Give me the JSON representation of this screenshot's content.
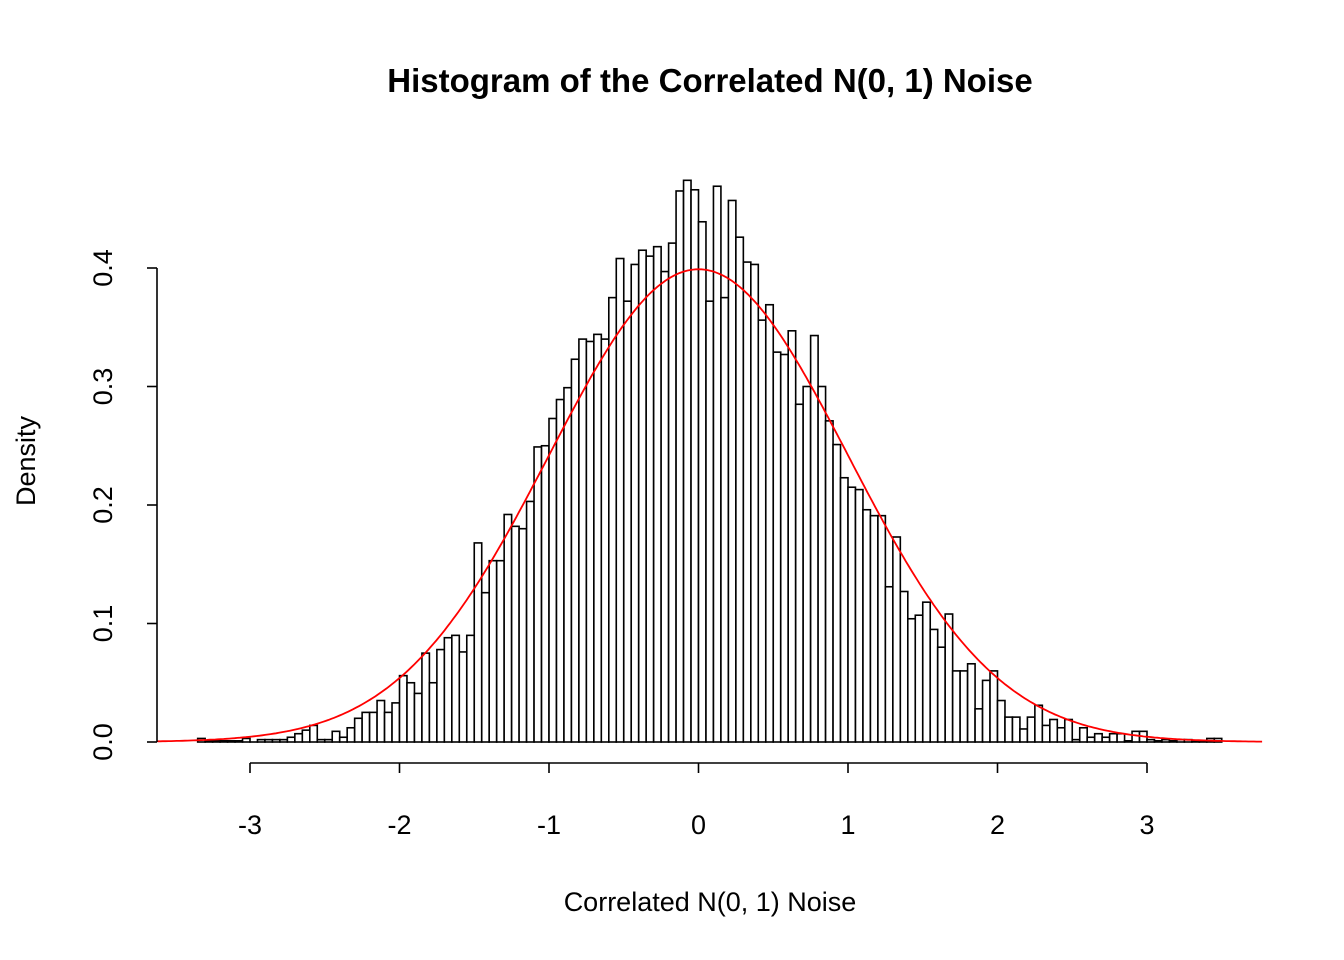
{
  "chart_data": {
    "type": "bar",
    "subtype": "histogram",
    "title": "Histogram of the Correlated N(0, 1) Noise",
    "xlabel": "Correlated N(0, 1) Noise",
    "ylabel": "Density",
    "xlim": [
      -3.62,
      3.77
    ],
    "ylim": [
      0,
      0.4
    ],
    "x_ticks": [
      -3,
      -2,
      -1,
      0,
      1,
      2,
      3
    ],
    "x_tick_labels": [
      "-3",
      "-2",
      "-1",
      "0",
      "1",
      "2",
      "3"
    ],
    "y_ticks": [
      0,
      0.1,
      0.2,
      0.3,
      0.4
    ],
    "y_tick_labels": [
      "0.0",
      "0.1",
      "0.2",
      "0.3",
      "0.4"
    ],
    "grid": false,
    "bin_start": -3.35,
    "bin_width": 0.05,
    "values": [
      0.003,
      0.001,
      0.001,
      0.001,
      0.001,
      0.001,
      0.003,
      0,
      0.002,
      0.002,
      0.002,
      0.002,
      0.004,
      0.007,
      0.01,
      0.014,
      0.002,
      0.002,
      0.009,
      0.004,
      0.012,
      0.02,
      0.025,
      0.025,
      0.035,
      0.025,
      0.033,
      0.056,
      0.05,
      0.041,
      0.075,
      0.05,
      0.078,
      0.088,
      0.09,
      0.076,
      0.09,
      0.168,
      0.126,
      0.153,
      0.153,
      0.192,
      0.182,
      0.18,
      0.203,
      0.249,
      0.25,
      0.273,
      0.289,
      0.299,
      0.323,
      0.34,
      0.338,
      0.344,
      0.34,
      0.375,
      0.408,
      0.372,
      0.403,
      0.415,
      0.41,
      0.418,
      0.397,
      0.421,
      0.465,
      0.474,
      0.466,
      0.439,
      0.372,
      0.469,
      0.375,
      0.457,
      0.426,
      0.405,
      0.403,
      0.356,
      0.369,
      0.329,
      0.327,
      0.347,
      0.285,
      0.3,
      0.343,
      0.3,
      0.271,
      0.251,
      0.223,
      0.215,
      0.213,
      0.196,
      0.191,
      0.191,
      0.131,
      0.173,
      0.127,
      0.104,
      0.107,
      0.118,
      0.095,
      0.08,
      0.108,
      0.06,
      0.06,
      0.066,
      0.028,
      0.052,
      0.06,
      0.035,
      0.021,
      0.021,
      0.011,
      0.021,
      0.031,
      0.014,
      0.019,
      0.012,
      0.019,
      0.002,
      0.012,
      0.004,
      0.007,
      0.004,
      0.007,
      0.007,
      0.001,
      0.009,
      0.009,
      0.002,
      0.001,
      0.002,
      0.001,
      0.002,
      0.002,
      0.001,
      0.001,
      0.003,
      0.003
    ],
    "bar_fill": "#ffffff",
    "bar_stroke": "#000000",
    "overlay_curve": {
      "type": "line",
      "function": "normal density",
      "mean": 0,
      "sd": 1,
      "x_range": [
        -3.62,
        3.77
      ],
      "color": "#ff0000"
    }
  }
}
